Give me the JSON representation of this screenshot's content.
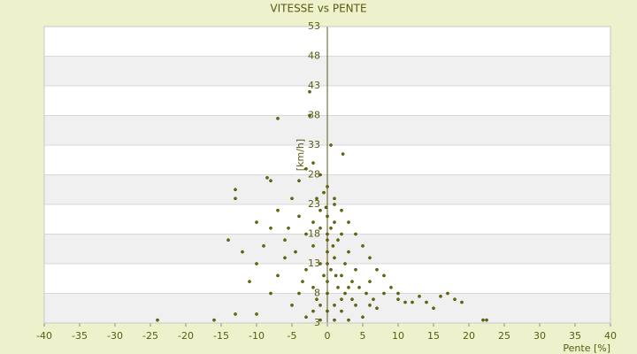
{
  "chart_data": {
    "type": "scatter",
    "title": "VITESSE vs PENTE",
    "x_label": "Pente [%]",
    "y_label": "[km/h]",
    "color": "#6b6b00",
    "xlim": [
      -40,
      40
    ],
    "xticks": [
      -40,
      -35,
      -30,
      -25,
      -20,
      -15,
      -10,
      -5,
      0,
      5,
      10,
      15,
      20,
      25,
      30,
      35,
      40
    ],
    "ylim": [
      3,
      53
    ],
    "yticks": [
      3,
      8,
      13,
      18,
      23,
      28,
      33,
      38,
      43,
      48,
      53
    ],
    "grid": true,
    "x": [
      -2.5,
      -7,
      -2.5,
      0.5,
      2.2,
      -13,
      -13,
      -8.5,
      -8,
      -24,
      -16,
      -13,
      -10,
      22,
      22.5,
      15,
      17,
      19,
      18,
      14,
      16,
      12,
      10,
      8,
      6,
      7,
      -11,
      -10,
      -12,
      -14,
      -10,
      -7,
      -5,
      -4,
      -3,
      -2,
      -1,
      0,
      1,
      2,
      3,
      4,
      5,
      6,
      8,
      9,
      10,
      11,
      13,
      -6,
      -7,
      -8,
      -5,
      -3,
      -1,
      1,
      3,
      5,
      -2,
      0,
      2,
      4,
      -4,
      -2,
      0,
      2,
      4,
      -3,
      -1,
      1,
      3,
      -2,
      0,
      2,
      -1,
      1,
      0,
      -1,
      1,
      0,
      0.5,
      -0.5,
      1.5,
      2.5,
      3.5,
      -1.5,
      -3.5,
      -4.5,
      -5.5,
      -3,
      -2,
      -1.5,
      -0.5,
      0.5,
      1.5,
      2.5,
      3.5,
      4.5,
      5.5,
      6.5,
      -6,
      -8,
      -9,
      -4,
      0,
      1,
      -1,
      2,
      3,
      6,
      7,
      0,
      0,
      -0.2,
      1.2,
      0.8
    ],
    "values": [
      42,
      37.5,
      38,
      33,
      31.5,
      25.5,
      24,
      27.5,
      27,
      3.5,
      3.5,
      4.5,
      4.5,
      3.5,
      3.5,
      5.5,
      8,
      6.5,
      7,
      6.5,
      7.5,
      6.5,
      7,
      8,
      10,
      12,
      10,
      13,
      15,
      17,
      20,
      22,
      24,
      27,
      29,
      30,
      28,
      26,
      24,
      22,
      20,
      18,
      16,
      14,
      11,
      9,
      8,
      6.5,
      7.5,
      14,
      11,
      8,
      6,
      4,
      3.5,
      3.5,
      3.5,
      4,
      5,
      5,
      5,
      6,
      8,
      9,
      10,
      11,
      12,
      12,
      13,
      14,
      15,
      16,
      17,
      18,
      19,
      20,
      21,
      22,
      23,
      15,
      12,
      11,
      9,
      8,
      7,
      7,
      10,
      15,
      19,
      18,
      20,
      24,
      25,
      19,
      17,
      13,
      10,
      9,
      8,
      7,
      17,
      19,
      16,
      21,
      8,
      6,
      6,
      7,
      9,
      6,
      5.5,
      13,
      18,
      22.5,
      11,
      16
    ]
  }
}
